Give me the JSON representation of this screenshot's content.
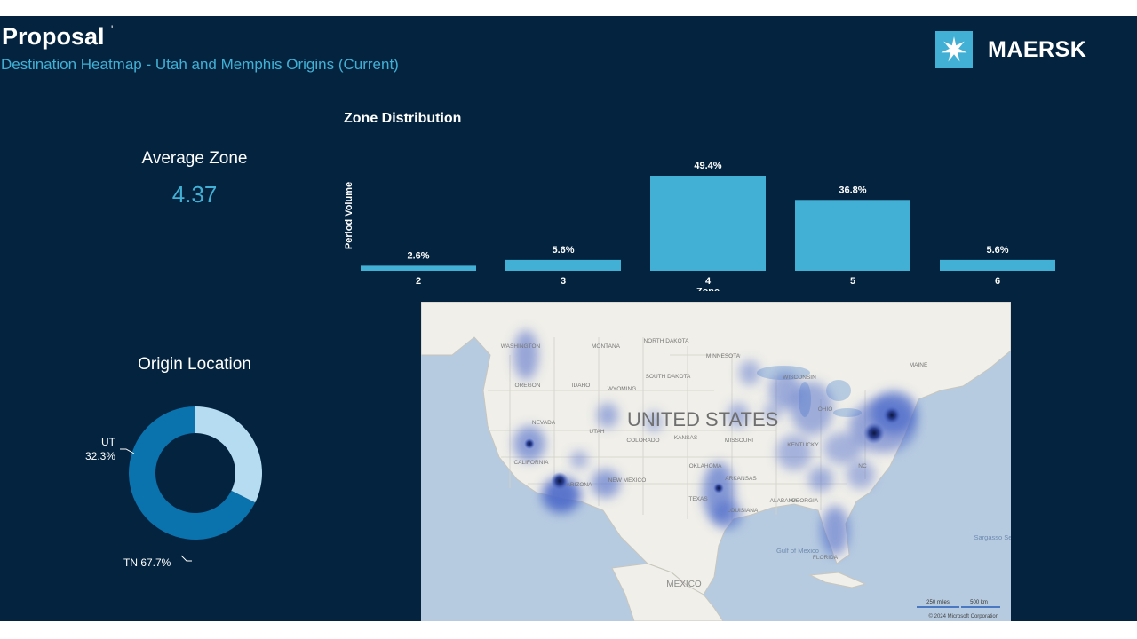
{
  "header": {
    "title": "Proposal",
    "title_mark": "'",
    "subtitle": "Destination Heatmap - Utah and Memphis Origins (Current)"
  },
  "logo": {
    "text": "MAERSK",
    "icon": "seven-point-star-icon",
    "box_color": "#42b0d5"
  },
  "kpi": {
    "label": "Average Zone",
    "value": "4.37"
  },
  "origin": {
    "label": "Origin Location"
  },
  "colors": {
    "background": "#03233f",
    "accent": "#42b0d5",
    "bar": "#42b0d5",
    "donut_tn": "#0a73ad",
    "donut_ut": "#b5dcf1",
    "land": "#f0efe9",
    "water": "#b7cbe0",
    "heat": "#4a68c9"
  },
  "chart_data": [
    {
      "type": "bar",
      "title": "Zone Distribution",
      "xlabel": "Zone",
      "ylabel": "Period Volume",
      "categories": [
        "2",
        "3",
        "4",
        "5",
        "6"
      ],
      "values": [
        2.6,
        5.6,
        49.4,
        36.8,
        5.6
      ],
      "data_labels": [
        "2.6%",
        "5.6%",
        "49.4%",
        "36.8%",
        "5.6%"
      ],
      "ylim": [
        0,
        49.4
      ],
      "grid": false,
      "legend": "none"
    },
    {
      "type": "pie",
      "title": "Origin Location",
      "donut": true,
      "categories": [
        "UT",
        "TN"
      ],
      "values": [
        32.3,
        67.7
      ],
      "value_labels": [
        "32.3%",
        "67.7%"
      ]
    }
  ],
  "map": {
    "country_label": "UNITED STATES",
    "state_labels": [
      "WASHINGTON",
      "OREGON",
      "IDAHO",
      "MONTANA",
      "WYOMING",
      "NORTH DAKOTA",
      "SOUTH DAKOTA",
      "MINNESOTA",
      "WISCONSIN",
      "NEVADA",
      "UTAH",
      "COLORADO",
      "KANSAS",
      "MISSOURI",
      "OHIO",
      "CALIFORNIA",
      "ARIZONA",
      "NEW MEXICO",
      "OKLAHOMA",
      "ARKANSAS",
      "TEXAS",
      "LOUISIANA",
      "ALABAMA",
      "GEORGIA",
      "KENTUCKY",
      "FLORIDA",
      "MAINE",
      "NC"
    ],
    "region_labels": [
      "MEXICO",
      "Gulf of Mexico",
      "Sargasso Se"
    ],
    "scale": [
      "250 miles",
      "500 km"
    ],
    "copyright": "© 2024 Microsoft Corporation"
  }
}
